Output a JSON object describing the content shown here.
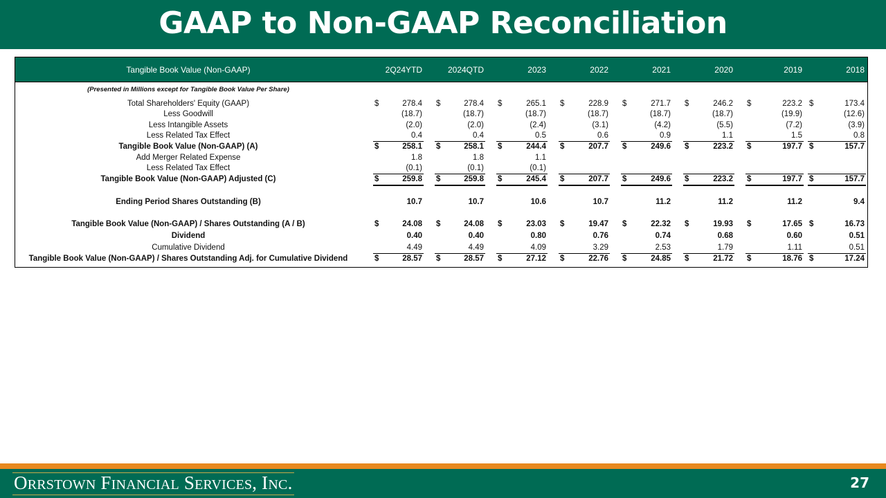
{
  "slide": {
    "title": "GAAP to Non-GAAP Reconciliation",
    "page_number": "27",
    "company": "Orrstown Financial Services, Inc.",
    "colors": {
      "brand_green": "#006b54",
      "accent_orange": "#e8891f",
      "text": "#111111"
    }
  },
  "table": {
    "header_label": "Tangible Book Value (Non-GAAP)",
    "columns": [
      "2Q24YTD",
      "2024QTD",
      "2023",
      "2022",
      "2021",
      "2020",
      "2019",
      "2018"
    ],
    "note": "(Presented in Millions except for Tangible Book Value Per Share)",
    "rows": [
      {
        "label": "Total Shareholders' Equity (GAAP)",
        "bold": false,
        "dollar": true,
        "values": [
          "278.4",
          "278.4",
          "265.1",
          "228.9",
          "271.7",
          "246.2",
          "223.2",
          "173.4"
        ]
      },
      {
        "label": "Less Goodwill",
        "bold": false,
        "dollar": false,
        "values": [
          "(18.7)",
          "(18.7)",
          "(18.7)",
          "(18.7)",
          "(18.7)",
          "(18.7)",
          "(19.9)",
          "(12.6)"
        ]
      },
      {
        "label": "Less Intangible Assets",
        "bold": false,
        "dollar": false,
        "values": [
          "(2.0)",
          "(2.0)",
          "(2.4)",
          "(3.1)",
          "(4.2)",
          "(5.5)",
          "(7.2)",
          "(3.9)"
        ]
      },
      {
        "label": "Less Related Tax Effect",
        "bold": false,
        "dollar": false,
        "values": [
          "0.4",
          "0.4",
          "0.5",
          "0.6",
          "0.9",
          "1.1",
          "1.5",
          "0.8"
        ]
      },
      {
        "label": "Tangible Book Value (Non-GAAP) (A)",
        "bold": true,
        "dollar": true,
        "values": [
          "258.1",
          "258.1",
          "244.4",
          "207.7",
          "249.6",
          "223.2",
          "197.7",
          "157.7"
        ]
      },
      {
        "label": "Add Merger Related Expense",
        "bold": false,
        "dollar": false,
        "values": [
          "1.8",
          "1.8",
          "1.1",
          "",
          "",
          "",
          "",
          ""
        ]
      },
      {
        "label": "Less Related Tax Effect",
        "bold": false,
        "dollar": false,
        "values": [
          "(0.1)",
          "(0.1)",
          "(0.1)",
          "",
          "",
          "",
          "",
          ""
        ]
      },
      {
        "label": "Tangible Book Value (Non-GAAP) Adjusted (C)",
        "bold": true,
        "dollar": true,
        "values": [
          "259.8",
          "259.8",
          "245.4",
          "207.7",
          "249.6",
          "223.2",
          "197.7",
          "157.7"
        ]
      },
      {
        "label": "Ending Period Shares Outstanding (B)",
        "bold": true,
        "dollar": false,
        "values": [
          "10.7",
          "10.7",
          "10.6",
          "10.7",
          "11.2",
          "11.2",
          "11.2",
          "9.4"
        ]
      },
      {
        "label": "Tangible Book Value (Non-GAAP) / Shares Outstanding (A / B)",
        "bold": true,
        "dollar": true,
        "values": [
          "24.08",
          "24.08",
          "23.03",
          "19.47",
          "22.32",
          "19.93",
          "17.65",
          "16.73"
        ]
      },
      {
        "label": "Dividend",
        "bold": true,
        "dollar": false,
        "values": [
          "0.40",
          "0.40",
          "0.80",
          "0.76",
          "0.74",
          "0.68",
          "0.60",
          "0.51"
        ]
      },
      {
        "label": "Cumulative Dividend",
        "bold": false,
        "dollar": false,
        "values": [
          "4.49",
          "4.49",
          "4.09",
          "3.29",
          "2.53",
          "1.79",
          "1.11",
          "0.51"
        ]
      },
      {
        "label": "Tangible Book Value (Non-GAAP) / Shares Outstanding Adj. for Cumulative Dividend",
        "bold": true,
        "dollar": true,
        "values": [
          "28.57",
          "28.57",
          "27.12",
          "22.76",
          "24.85",
          "21.72",
          "18.76",
          "17.24"
        ]
      }
    ],
    "dollar_sign": "$"
  }
}
